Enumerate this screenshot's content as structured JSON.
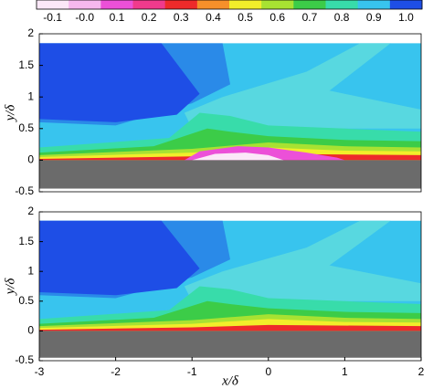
{
  "colorbar": {
    "ticks": [
      -0.1,
      {
        "value": 0,
        "label": "-0.0"
      },
      0.1,
      0.2,
      0.3,
      0.4,
      0.5,
      0.6,
      0.7,
      0.8,
      0.9,
      {
        "value": 1,
        "label": "1.0"
      }
    ],
    "colors": [
      "#fbe8f8",
      "#f6b8ee",
      "#ec50d8",
      "#f03a8c",
      "#ee2a2a",
      "#f6902a",
      "#f2ee2a",
      "#a8e232",
      "#3ccc48",
      "#38dcaa",
      "#38c4ee",
      "#1e4ee6"
    ]
  },
  "chart_data": [
    {
      "type": "contour",
      "ylabel": "y/δ",
      "xlim": [
        -3,
        2
      ],
      "ylim": [
        -0.5,
        2
      ],
      "yticks": [
        -0.5,
        0,
        0.5,
        1,
        1.5,
        2
      ]
    },
    {
      "type": "contour",
      "ylabel": "y/δ",
      "xlabel": "x/δ",
      "xlim": [
        -3,
        2
      ],
      "ylim": [
        -0.5,
        2
      ],
      "yticks": [
        -0.5,
        0,
        0.5,
        1,
        1.5,
        2
      ],
      "xticks": [
        -3,
        -2,
        -1,
        0,
        1,
        2
      ]
    }
  ]
}
